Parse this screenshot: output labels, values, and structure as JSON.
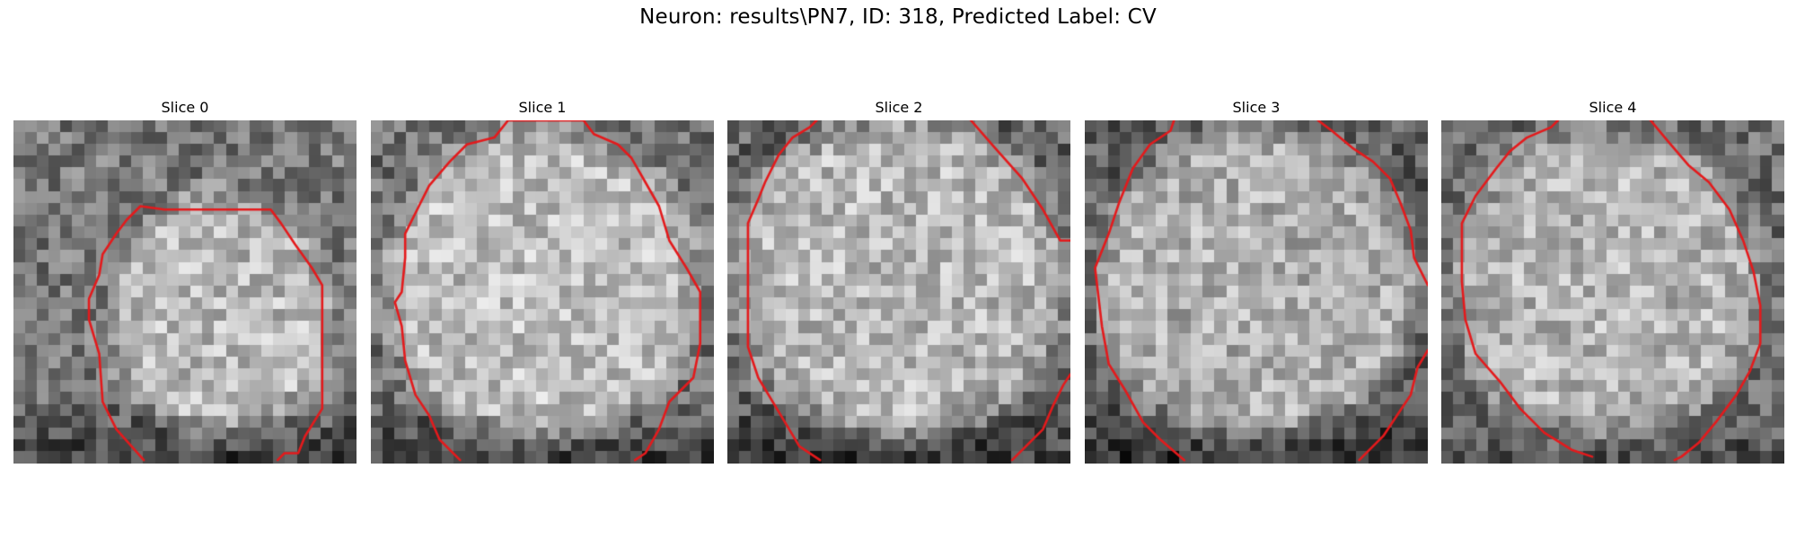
{
  "figure": {
    "suptitle": "Neuron: results\\PN7, ID: 318, Predicted Label: CV",
    "contour_color": "#e41a1c",
    "colormap": "gray"
  },
  "slices": [
    {
      "title": "Slice 0"
    },
    {
      "title": "Slice 1"
    },
    {
      "title": "Slice 2"
    },
    {
      "title": "Slice 3"
    },
    {
      "title": "Slice 4"
    }
  ]
}
